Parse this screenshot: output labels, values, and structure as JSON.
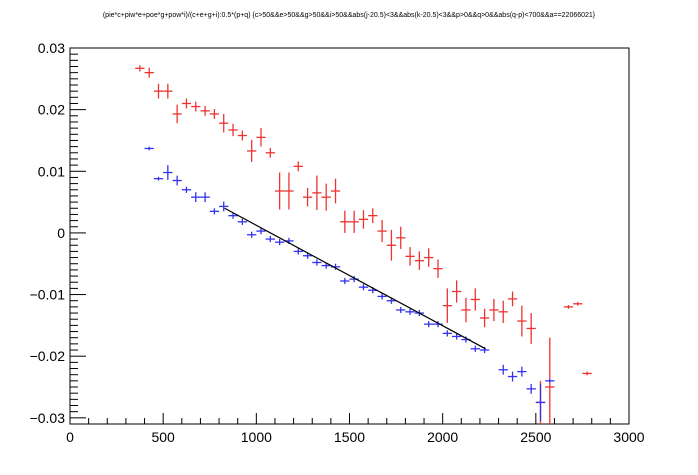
{
  "chart_data": {
    "type": "scatter",
    "title": "(pie*c+piw*e+poe*g+pow*i)/(c+e+g+i):0.5*(p+q) {c>50&&e>50&&g>50&&i>50&&abs(j-20.5)<3&&abs(k-20.5)<3&&p>0&&q>0&&abs(q-p)<700&&a==22066021}",
    "xlabel": "",
    "ylabel": "",
    "xlim": [
      0,
      3000
    ],
    "ylim": [
      -0.031,
      0.03
    ],
    "x_ticks": [
      0,
      500,
      1000,
      1500,
      2000,
      2500,
      3000
    ],
    "y_ticks": [
      -0.03,
      -0.02,
      -0.01,
      0,
      0.01,
      0.02,
      0.03
    ],
    "x_tick_labels": [
      "0",
      "500",
      "1000",
      "1500",
      "2000",
      "2500",
      "3000"
    ],
    "y_tick_labels": [
      "−0.03",
      "−0.02",
      "−0.01",
      "0",
      "0.01",
      "0.02",
      "0.03"
    ],
    "grid": false,
    "series": [
      {
        "color": "#ee3333",
        "points": [
          {
            "x": 375,
            "y": 0.0267,
            "xerr": 25,
            "yerr": 0.0005
          },
          {
            "x": 425,
            "y": 0.026,
            "xerr": 25,
            "yerr": 0.0008
          },
          {
            "x": 475,
            "y": 0.023,
            "xerr": 25,
            "yerr": 0.0012
          },
          {
            "x": 525,
            "y": 0.023,
            "xerr": 25,
            "yerr": 0.0012
          },
          {
            "x": 575,
            "y": 0.0193,
            "xerr": 25,
            "yerr": 0.0015
          },
          {
            "x": 625,
            "y": 0.021,
            "xerr": 25,
            "yerr": 0.0008
          },
          {
            "x": 675,
            "y": 0.0205,
            "xerr": 25,
            "yerr": 0.0008
          },
          {
            "x": 725,
            "y": 0.0198,
            "xerr": 25,
            "yerr": 0.0008
          },
          {
            "x": 775,
            "y": 0.0193,
            "xerr": 25,
            "yerr": 0.0008
          },
          {
            "x": 825,
            "y": 0.0178,
            "xerr": 25,
            "yerr": 0.0015
          },
          {
            "x": 875,
            "y": 0.0167,
            "xerr": 25,
            "yerr": 0.001
          },
          {
            "x": 925,
            "y": 0.0158,
            "xerr": 25,
            "yerr": 0.0008
          },
          {
            "x": 975,
            "y": 0.0133,
            "xerr": 25,
            "yerr": 0.0018
          },
          {
            "x": 1025,
            "y": 0.0155,
            "xerr": 25,
            "yerr": 0.0015
          },
          {
            "x": 1075,
            "y": 0.013,
            "xerr": 25,
            "yerr": 0.0008
          },
          {
            "x": 1125,
            "y": 0.0068,
            "xerr": 25,
            "yerr": 0.003
          },
          {
            "x": 1175,
            "y": 0.0068,
            "xerr": 25,
            "yerr": 0.003
          },
          {
            "x": 1225,
            "y": 0.0108,
            "xerr": 25,
            "yerr": 0.0008
          },
          {
            "x": 1275,
            "y": 0.0058,
            "xerr": 25,
            "yerr": 0.0015
          },
          {
            "x": 1325,
            "y": 0.0065,
            "xerr": 25,
            "yerr": 0.0028
          },
          {
            "x": 1375,
            "y": 0.0058,
            "xerr": 25,
            "yerr": 0.0022
          },
          {
            "x": 1425,
            "y": 0.0068,
            "xerr": 25,
            "yerr": 0.002
          },
          {
            "x": 1475,
            "y": 0.0018,
            "xerr": 25,
            "yerr": 0.0018
          },
          {
            "x": 1525,
            "y": 0.0018,
            "xerr": 25,
            "yerr": 0.0018
          },
          {
            "x": 1575,
            "y": 0.0022,
            "xerr": 25,
            "yerr": 0.0015
          },
          {
            "x": 1625,
            "y": 0.0028,
            "xerr": 25,
            "yerr": 0.0012
          },
          {
            "x": 1675,
            "y": 0.0003,
            "xerr": 25,
            "yerr": 0.0018
          },
          {
            "x": 1725,
            "y": -0.002,
            "xerr": 25,
            "yerr": 0.0025
          },
          {
            "x": 1775,
            "y": -0.0008,
            "xerr": 25,
            "yerr": 0.0018
          },
          {
            "x": 1825,
            "y": -0.0038,
            "xerr": 25,
            "yerr": 0.0015
          },
          {
            "x": 1875,
            "y": -0.0045,
            "xerr": 25,
            "yerr": 0.0015
          },
          {
            "x": 1925,
            "y": -0.004,
            "xerr": 25,
            "yerr": 0.0015
          },
          {
            "x": 1975,
            "y": -0.0058,
            "xerr": 25,
            "yerr": 0.0015
          },
          {
            "x": 2025,
            "y": -0.0118,
            "xerr": 25,
            "yerr": 0.0028
          },
          {
            "x": 2075,
            "y": -0.0095,
            "xerr": 25,
            "yerr": 0.0018
          },
          {
            "x": 2125,
            "y": -0.0125,
            "xerr": 25,
            "yerr": 0.002
          },
          {
            "x": 2175,
            "y": -0.0108,
            "xerr": 25,
            "yerr": 0.0018
          },
          {
            "x": 2225,
            "y": -0.0138,
            "xerr": 25,
            "yerr": 0.0015
          },
          {
            "x": 2275,
            "y": -0.0125,
            "xerr": 25,
            "yerr": 0.0018
          },
          {
            "x": 2325,
            "y": -0.0128,
            "xerr": 25,
            "yerr": 0.0018
          },
          {
            "x": 2375,
            "y": -0.0107,
            "xerr": 25,
            "yerr": 0.0012
          },
          {
            "x": 2425,
            "y": -0.0143,
            "xerr": 25,
            "yerr": 0.0025
          },
          {
            "x": 2475,
            "y": -0.0155,
            "xerr": 25,
            "yerr": 0.0025
          },
          {
            "x": 2525,
            "y": -0.0275,
            "xerr": 25,
            "yerr": 0.0035
          },
          {
            "x": 2575,
            "y": -0.025,
            "xerr": 25,
            "yerr": 0.008
          },
          {
            "x": 2675,
            "y": -0.012,
            "xerr": 25,
            "yerr": 0.0
          },
          {
            "x": 2725,
            "y": -0.0115,
            "xerr": 25,
            "yerr": 0.0
          },
          {
            "x": 2775,
            "y": -0.0228,
            "xerr": 25,
            "yerr": 0.0
          }
        ]
      },
      {
        "color": "#3333ee",
        "points": [
          {
            "x": 425,
            "y": 0.0137,
            "xerr": 25,
            "yerr": 0.0
          },
          {
            "x": 475,
            "y": 0.0088,
            "xerr": 25,
            "yerr": 0.0003
          },
          {
            "x": 525,
            "y": 0.0098,
            "xerr": 25,
            "yerr": 0.0012
          },
          {
            "x": 575,
            "y": 0.0085,
            "xerr": 25,
            "yerr": 0.0008
          },
          {
            "x": 625,
            "y": 0.007,
            "xerr": 25,
            "yerr": 0.0005
          },
          {
            "x": 675,
            "y": 0.0058,
            "xerr": 25,
            "yerr": 0.0008
          },
          {
            "x": 725,
            "y": 0.0058,
            "xerr": 25,
            "yerr": 0.0008
          },
          {
            "x": 775,
            "y": 0.0035,
            "xerr": 25,
            "yerr": 0.0005
          },
          {
            "x": 825,
            "y": 0.0043,
            "xerr": 25,
            "yerr": 0.0008
          },
          {
            "x": 875,
            "y": 0.0028,
            "xerr": 25,
            "yerr": 0.0005
          },
          {
            "x": 925,
            "y": 0.0018,
            "xerr": 25,
            "yerr": 0.0005
          },
          {
            "x": 975,
            "y": -0.0003,
            "xerr": 25,
            "yerr": 0.0005
          },
          {
            "x": 1025,
            "y": 0.0003,
            "xerr": 25,
            "yerr": 0.0005
          },
          {
            "x": 1075,
            "y": -0.001,
            "xerr": 25,
            "yerr": 0.0005
          },
          {
            "x": 1125,
            "y": -0.0015,
            "xerr": 25,
            "yerr": 0.0005
          },
          {
            "x": 1175,
            "y": -0.0013,
            "xerr": 25,
            "yerr": 0.0005
          },
          {
            "x": 1225,
            "y": -0.003,
            "xerr": 25,
            "yerr": 0.0005
          },
          {
            "x": 1275,
            "y": -0.0037,
            "xerr": 25,
            "yerr": 0.0005
          },
          {
            "x": 1325,
            "y": -0.0048,
            "xerr": 25,
            "yerr": 0.0005
          },
          {
            "x": 1375,
            "y": -0.0053,
            "xerr": 25,
            "yerr": 0.0005
          },
          {
            "x": 1425,
            "y": -0.0055,
            "xerr": 25,
            "yerr": 0.0005
          },
          {
            "x": 1475,
            "y": -0.0078,
            "xerr": 25,
            "yerr": 0.0005
          },
          {
            "x": 1525,
            "y": -0.0075,
            "xerr": 25,
            "yerr": 0.0005
          },
          {
            "x": 1575,
            "y": -0.0088,
            "xerr": 25,
            "yerr": 0.0005
          },
          {
            "x": 1625,
            "y": -0.0093,
            "xerr": 25,
            "yerr": 0.0005
          },
          {
            "x": 1675,
            "y": -0.0103,
            "xerr": 25,
            "yerr": 0.0005
          },
          {
            "x": 1725,
            "y": -0.011,
            "xerr": 25,
            "yerr": 0.0005
          },
          {
            "x": 1775,
            "y": -0.0125,
            "xerr": 25,
            "yerr": 0.0005
          },
          {
            "x": 1825,
            "y": -0.0128,
            "xerr": 25,
            "yerr": 0.0005
          },
          {
            "x": 1875,
            "y": -0.013,
            "xerr": 25,
            "yerr": 0.0005
          },
          {
            "x": 1925,
            "y": -0.0148,
            "xerr": 25,
            "yerr": 0.0005
          },
          {
            "x": 1975,
            "y": -0.0148,
            "xerr": 25,
            "yerr": 0.0005
          },
          {
            "x": 2025,
            "y": -0.0163,
            "xerr": 25,
            "yerr": 0.0005
          },
          {
            "x": 2075,
            "y": -0.0168,
            "xerr": 25,
            "yerr": 0.0005
          },
          {
            "x": 2125,
            "y": -0.0173,
            "xerr": 25,
            "yerr": 0.0005
          },
          {
            "x": 2175,
            "y": -0.0188,
            "xerr": 25,
            "yerr": 0.0005
          },
          {
            "x": 2225,
            "y": -0.019,
            "xerr": 25,
            "yerr": 0.0005
          },
          {
            "x": 2325,
            "y": -0.0222,
            "xerr": 25,
            "yerr": 0.0008
          },
          {
            "x": 2375,
            "y": -0.0233,
            "xerr": 25,
            "yerr": 0.0008
          },
          {
            "x": 2425,
            "y": -0.0225,
            "xerr": 25,
            "yerr": 0.0008
          },
          {
            "x": 2475,
            "y": -0.0253,
            "xerr": 25,
            "yerr": 0.0008
          },
          {
            "x": 2525,
            "y": -0.0275,
            "xerr": 25,
            "yerr": 0.003
          },
          {
            "x": 2575,
            "y": -0.024,
            "xerr": 25,
            "yerr": 0.0
          }
        ]
      }
    ],
    "fit_line": {
      "color": "#000000",
      "x": [
        830,
        2230
      ],
      "y": [
        0.004,
        -0.0188
      ]
    }
  }
}
